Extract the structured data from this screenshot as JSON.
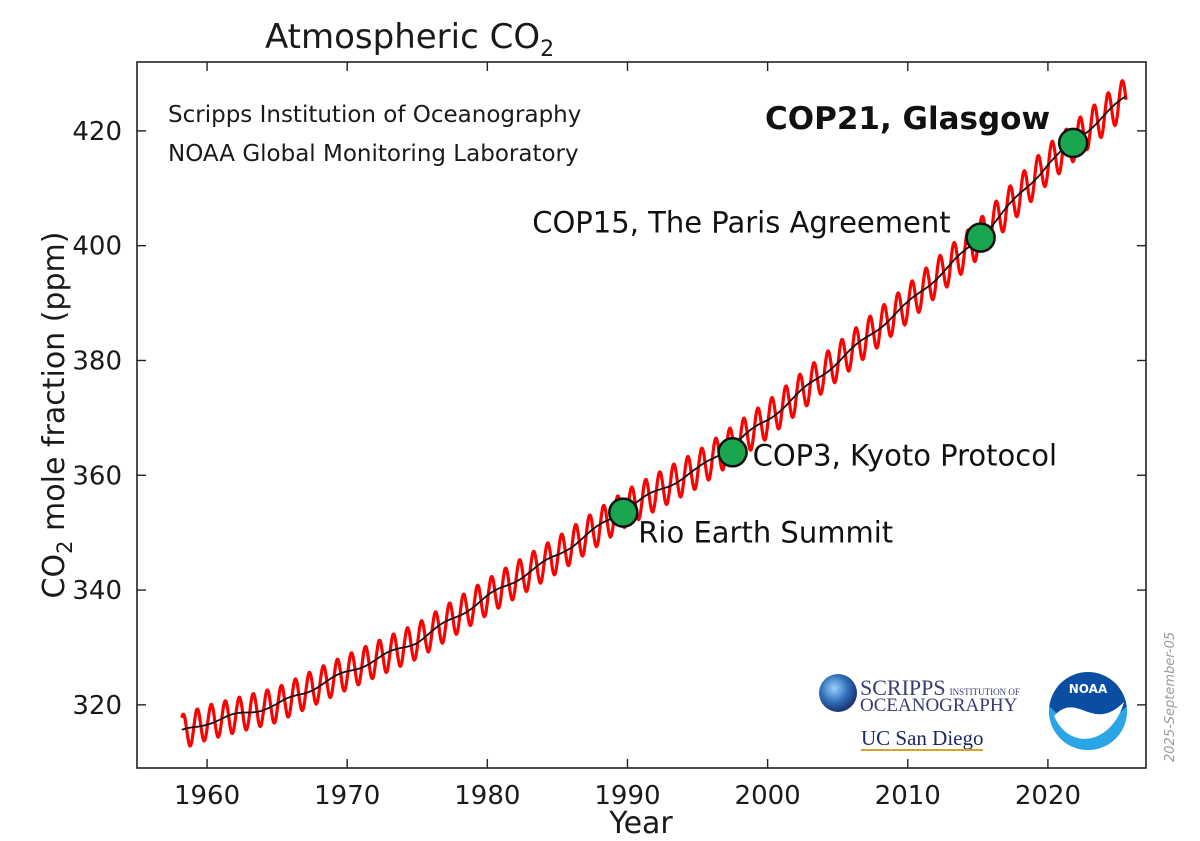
{
  "title": "Atmospheric CO",
  "title_sub": "2",
  "chart_data": {
    "type": "line",
    "xlabel": "Year",
    "ylabel_prefix": "CO",
    "ylabel_sub": "2",
    "ylabel_suffix": " mole fraction (ppm)",
    "xlim": [
      1955,
      2027
    ],
    "ylim": [
      309,
      432
    ],
    "x_ticks": [
      1960,
      1970,
      1980,
      1990,
      2000,
      2010,
      2020
    ],
    "y_ticks": [
      320,
      340,
      360,
      380,
      400,
      420
    ],
    "grid": false,
    "series": [
      {
        "role": "monthly",
        "color": "#ff0000",
        "seasonal_amplitude_ppm": 3.0,
        "x": [
          1958.2,
          1960,
          1965,
          1970,
          1975,
          1980,
          1985,
          1990,
          1995,
          2000,
          2005,
          2010,
          2015,
          2020,
          2025.6
        ],
        "y": [
          315.3,
          316.9,
          320.0,
          325.7,
          331.1,
          338.8,
          346.1,
          354.4,
          361.0,
          369.7,
          379.8,
          389.9,
          401.0,
          414.2,
          426.0
        ]
      },
      {
        "role": "trend",
        "color": "#111111",
        "x": [
          1958.2,
          1960,
          1965,
          1970,
          1975,
          1980,
          1985,
          1990,
          1995,
          2000,
          2005,
          2010,
          2015,
          2020,
          2025.6
        ],
        "y": [
          315.3,
          316.9,
          320.0,
          325.7,
          331.1,
          338.8,
          346.1,
          354.4,
          361.0,
          369.7,
          379.8,
          389.9,
          401.0,
          414.2,
          426.0
        ]
      }
    ],
    "markers": [
      {
        "x": 1989.7,
        "y": 353.5,
        "label": "Rio Earth Summit",
        "label_pos": "below-right",
        "bold": false
      },
      {
        "x": 1997.5,
        "y": 364.0,
        "label": "COP3, Kyoto Protocol",
        "label_pos": "right",
        "bold": false
      },
      {
        "x": 2015.2,
        "y": 401.4,
        "label": "COP15, The Paris Agreement",
        "label_pos": "left",
        "bold": false
      },
      {
        "x": 2021.8,
        "y": 417.9,
        "label": "COP21, Glasgow",
        "label_pos": "above-left",
        "bold": true
      }
    ],
    "marker_color": "#1aa64f",
    "credits": [
      "Scripps Institution of Oceanography",
      "NOAA Global Monitoring Laboratory"
    ]
  },
  "logos": {
    "scripps_line1": "SCRIPPS",
    "scripps_line1_small": "INSTITUTION OF",
    "scripps_line2": "OCEANOGRAPHY",
    "ucsd": "UC San Diego",
    "noaa": "NOAA"
  },
  "datestamp": "2025-September-05"
}
